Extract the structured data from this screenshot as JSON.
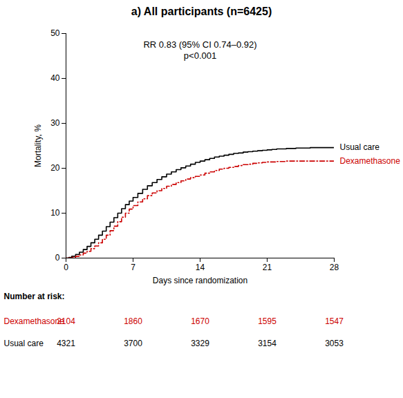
{
  "chart_data": {
    "type": "line",
    "title": "a) All participants (n=6425)",
    "xlabel": "Days since randomization",
    "ylabel": "Mortality, %",
    "annotations": [
      "RR 0.83 (95% CI 0.74–0.92)",
      "p<0.001"
    ],
    "xlim": [
      0,
      28
    ],
    "ylim": [
      0,
      50
    ],
    "xticks": [
      0,
      7,
      14,
      21,
      28
    ],
    "yticks": [
      0,
      10,
      20,
      30,
      40,
      50
    ],
    "grid": false,
    "x": [
      0,
      0.3,
      0.6,
      1.0,
      1.4,
      1.8,
      2.2,
      2.6,
      3.0,
      3.4,
      3.8,
      4.2,
      4.6,
      5.0,
      5.4,
      5.8,
      6.2,
      6.6,
      7.0,
      7.5,
      8.0,
      8.5,
      9.0,
      9.5,
      10.0,
      10.5,
      11.0,
      11.5,
      12.0,
      12.5,
      13.0,
      13.5,
      14.0,
      14.5,
      15.0,
      15.5,
      16.0,
      16.5,
      17.0,
      17.5,
      18.0,
      18.5,
      19.0,
      19.5,
      20.0,
      20.5,
      21.0,
      21.5,
      22.0,
      22.5,
      23.0,
      23.5,
      24.0,
      24.5,
      25.0,
      25.5,
      26.0,
      26.5,
      27.0,
      27.5,
      28.0
    ],
    "series": [
      {
        "name": "Usual care",
        "color": "#000000",
        "line_style": "solid",
        "values": [
          0,
          0.15,
          0.4,
          0.8,
          1.3,
          1.9,
          2.6,
          3.4,
          4.2,
          5.1,
          6.0,
          7.0,
          8.0,
          9.0,
          10.0,
          11.0,
          11.9,
          12.7,
          13.5,
          14.4,
          15.3,
          16.1,
          16.8,
          17.5,
          18.1,
          18.7,
          19.2,
          19.7,
          20.1,
          20.5,
          20.9,
          21.3,
          21.6,
          21.9,
          22.2,
          22.5,
          22.7,
          22.9,
          23.1,
          23.3,
          23.4,
          23.6,
          23.7,
          23.8,
          23.9,
          24.0,
          24.1,
          24.2,
          24.3,
          24.3,
          24.4,
          24.4,
          24.5,
          24.5,
          24.5,
          24.6,
          24.6,
          24.6,
          24.6,
          24.6,
          24.6
        ]
      },
      {
        "name": "Dexamethasone",
        "color": "#cc0000",
        "line_style": "dashdot",
        "values": [
          0,
          0.05,
          0.2,
          0.4,
          0.7,
          1.1,
          1.5,
          2.1,
          2.7,
          3.4,
          4.2,
          5.1,
          6.1,
          7.1,
          8.1,
          9.1,
          10.0,
          10.9,
          11.7,
          12.5,
          13.2,
          13.9,
          14.5,
          15.0,
          15.5,
          16.0,
          16.4,
          16.8,
          17.2,
          17.6,
          17.9,
          18.2,
          18.5,
          18.9,
          19.2,
          19.5,
          19.8,
          20.0,
          20.2,
          20.4,
          20.6,
          20.8,
          20.9,
          21.1,
          21.2,
          21.3,
          21.4,
          21.4,
          21.5,
          21.5,
          21.6,
          21.6,
          21.6,
          21.6,
          21.6,
          21.6,
          21.6,
          21.6,
          21.6,
          21.6,
          21.6
        ]
      }
    ],
    "risk_table": {
      "title": "Number at risk:",
      "days": [
        0,
        7,
        14,
        21,
        28
      ],
      "rows": [
        {
          "name": "Dexamethasone",
          "color": "#cc0000",
          "values": [
            2104,
            1860,
            1670,
            1595,
            1547
          ]
        },
        {
          "name": "Usual care",
          "color": "#000000",
          "values": [
            4321,
            3700,
            3329,
            3154,
            3053
          ]
        }
      ]
    }
  }
}
